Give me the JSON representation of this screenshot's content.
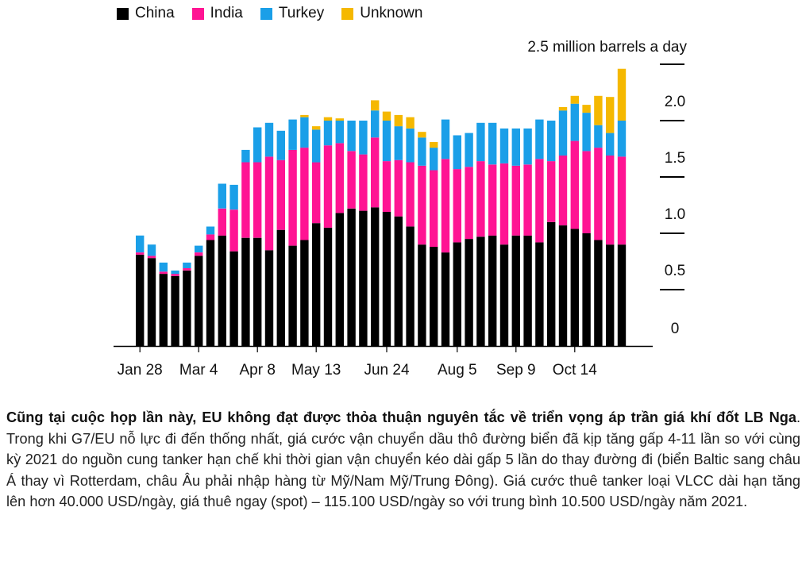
{
  "chart_data": {
    "type": "bar",
    "stacked": true,
    "unit_label": "2.5 million barrels a day",
    "ylim": [
      0,
      2.5
    ],
    "yticks": [
      {
        "value": 0,
        "label": "0"
      },
      {
        "value": 0.5,
        "label": "0.5"
      },
      {
        "value": 1.0,
        "label": "1.0"
      },
      {
        "value": 1.5,
        "label": "1.5"
      },
      {
        "value": 2.0,
        "label": "2.0"
      },
      {
        "value": 2.5,
        "label": ""
      }
    ],
    "xtick_labels": [
      {
        "index": 0,
        "label": "Jan 28"
      },
      {
        "index": 5,
        "label": "Mar 4"
      },
      {
        "index": 10,
        "label": "Apr 8"
      },
      {
        "index": 15,
        "label": "May 13"
      },
      {
        "index": 21,
        "label": "Jun 24"
      },
      {
        "index": 27,
        "label": "Aug 5"
      },
      {
        "index": 32,
        "label": "Sep 9"
      },
      {
        "index": 37,
        "label": "Oct 14"
      }
    ],
    "legend_position": "top-left",
    "series": [
      {
        "name": "China",
        "color": "#000000",
        "values": [
          0.81,
          0.78,
          0.64,
          0.62,
          0.67,
          0.8,
          0.94,
          0.98,
          0.84,
          0.96,
          0.96,
          0.85,
          1.03,
          0.89,
          0.94,
          1.09,
          1.05,
          1.18,
          1.22,
          1.2,
          1.23,
          1.19,
          1.15,
          1.06,
          0.9,
          0.88,
          0.83,
          0.92,
          0.95,
          0.97,
          0.98,
          0.9,
          0.98,
          0.98,
          0.92,
          1.1,
          1.07,
          1.04,
          1.0,
          0.94,
          0.9,
          0.9
        ]
      },
      {
        "name": "India",
        "color": "#ff1493",
        "values": [
          0.02,
          0.02,
          0.02,
          0.02,
          0.02,
          0.03,
          0.05,
          0.24,
          0.37,
          0.67,
          0.67,
          0.83,
          0.62,
          0.85,
          0.82,
          0.54,
          0.73,
          0.62,
          0.51,
          0.5,
          0.62,
          0.45,
          0.5,
          0.57,
          0.7,
          0.68,
          0.83,
          0.65,
          0.64,
          0.67,
          0.63,
          0.72,
          0.62,
          0.63,
          0.74,
          0.54,
          0.62,
          0.78,
          0.73,
          0.82,
          0.79,
          0.78
        ]
      },
      {
        "name": "Turkey",
        "color": "#1a9fe8",
        "values": [
          0.15,
          0.1,
          0.08,
          0.03,
          0.05,
          0.06,
          0.07,
          0.22,
          0.22,
          0.11,
          0.31,
          0.3,
          0.26,
          0.27,
          0.27,
          0.29,
          0.22,
          0.2,
          0.27,
          0.3,
          0.24,
          0.36,
          0.3,
          0.3,
          0.25,
          0.2,
          0.35,
          0.3,
          0.3,
          0.34,
          0.37,
          0.31,
          0.33,
          0.32,
          0.35,
          0.36,
          0.4,
          0.33,
          0.34,
          0.2,
          0.2,
          0.32
        ]
      },
      {
        "name": "Unknown",
        "color": "#f5b800",
        "values": [
          0,
          0,
          0,
          0,
          0,
          0,
          0,
          0,
          0,
          0,
          0,
          0,
          0,
          0,
          0.02,
          0.03,
          0.03,
          0.02,
          0,
          0,
          0.09,
          0.08,
          0.1,
          0.1,
          0.05,
          0.05,
          0,
          0,
          0,
          0,
          0,
          0,
          0,
          0,
          0,
          0,
          0.03,
          0.07,
          0.07,
          0.26,
          0.32,
          0.46
        ]
      }
    ]
  },
  "caption": {
    "bold": "Cũng tại cuộc họp lần này, EU không đạt được thỏa thuận nguyên tắc về triển vọng áp trần giá khí đốt LB Nga",
    "rest": ". Trong khi G7/EU nỗ lực đi đến thống nhất, giá cước vận chuyển dầu thô đường biển đã kịp tăng gấp 4-11 lần so với cùng kỳ 2021 do nguồn cung tanker hạn chế khi thời gian vận chuyển kéo dài gấp 5 lần do thay đường đi (biển Baltic sang châu Á thay vì Rotterdam, châu Âu phải nhập hàng từ Mỹ/Nam Mỹ/Trung Đông). Giá cước thuê tanker loại VLCC dài hạn tăng lên hơn 40.000 USD/ngày, giá thuê ngay (spot) – 115.100 USD/ngày so với trung bình 10.500 USD/ngày năm 2021."
  }
}
